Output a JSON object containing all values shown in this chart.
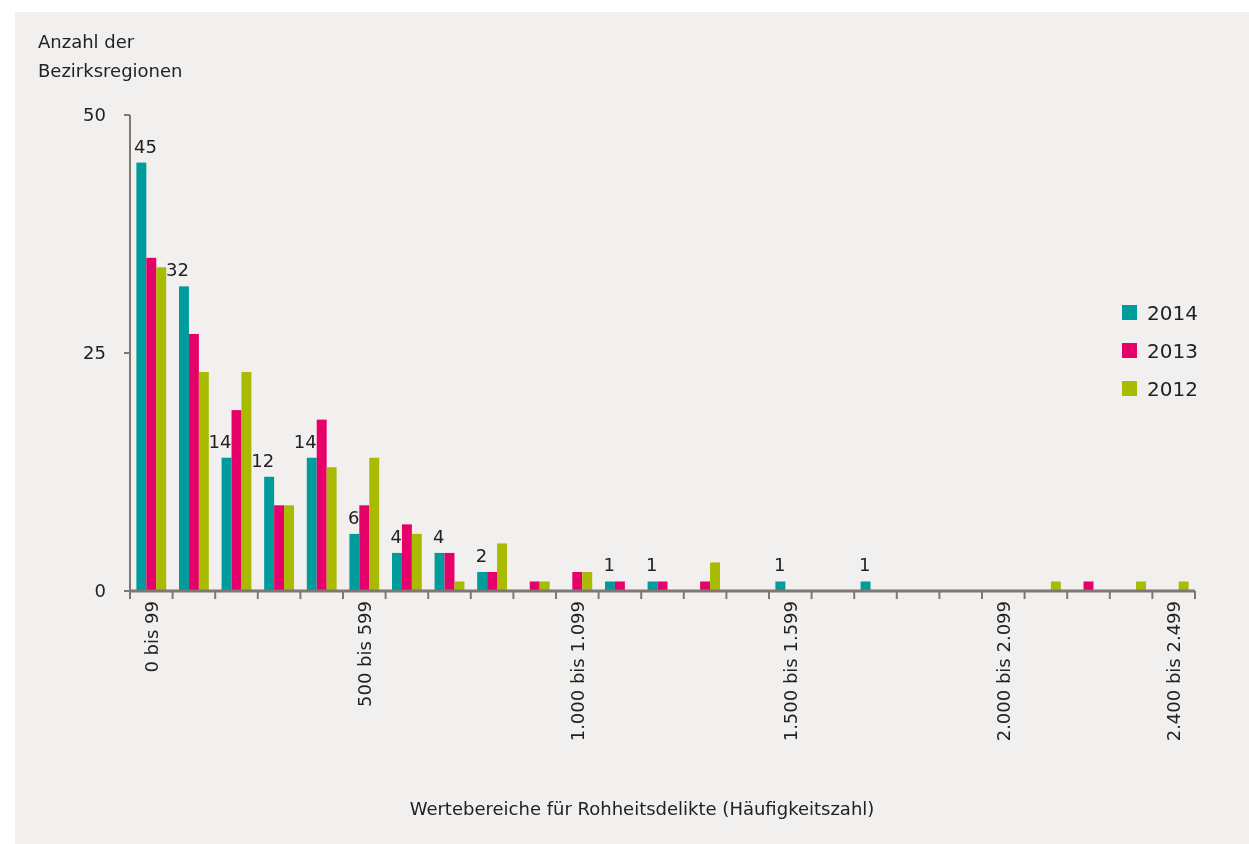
{
  "chart_data": {
    "type": "bar",
    "ylabel": "Anzahl der\nBezirksregionen",
    "xlabel": "Wertebereiche für Rohheitsdelikte (Häufigkeitszahl)",
    "categories": [
      "0 bis 99",
      null,
      null,
      null,
      null,
      "500 bis 599",
      null,
      null,
      null,
      null,
      "1.000 bis 1.099",
      null,
      null,
      null,
      null,
      "1.500 bis 1.599",
      null,
      null,
      null,
      null,
      "2.000 bis 2.099",
      null,
      null,
      null,
      "2.400 bis 2.499"
    ],
    "series": [
      {
        "name": "2014",
        "color": "#009b9b",
        "values": [
          45,
          32,
          14,
          12,
          14,
          6,
          4,
          4,
          2,
          0,
          0,
          1,
          1,
          0,
          0,
          1,
          0,
          1,
          0,
          0,
          0,
          0,
          0,
          0,
          0
        ],
        "value_labels": [
          "45",
          "32",
          "14",
          "12",
          "14",
          "6",
          "4",
          "4",
          "2",
          null,
          null,
          "1",
          "1",
          null,
          null,
          "1",
          null,
          "1",
          null,
          null,
          null,
          null,
          null,
          null,
          null
        ]
      },
      {
        "name": "2013",
        "color": "#e5006a",
        "values": [
          35,
          27,
          19,
          9,
          18,
          9,
          7,
          4,
          2,
          1,
          2,
          1,
          1,
          1,
          0,
          0,
          0,
          0,
          0,
          0,
          0,
          0,
          1,
          0,
          0
        ]
      },
      {
        "name": "2012",
        "color": "#a8bb00",
        "values": [
          34,
          23,
          23,
          9,
          13,
          14,
          6,
          1,
          5,
          1,
          2,
          0,
          0,
          3,
          0,
          0,
          0,
          0,
          0,
          0,
          0,
          1,
          0,
          1,
          1
        ]
      }
    ],
    "ylim": [
      0,
      50
    ],
    "yticks": [
      0,
      25,
      50
    ],
    "legend": "right"
  }
}
